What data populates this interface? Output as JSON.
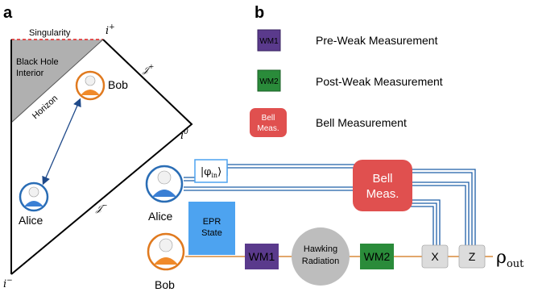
{
  "panel_a": {
    "label": "a",
    "singularity": "Singularity",
    "interior_line1": "Black Hole",
    "interior_line2": "Interior",
    "horizon": "Horizon",
    "bob": "Bob",
    "alice": "Alice",
    "i_plus_base": "i",
    "i_plus_sup": "+",
    "i_zero_base": "i",
    "i_zero_sup": "0",
    "i_minus_base": "i",
    "i_minus_sup": "−",
    "scri_plus_base": "𝒥",
    "scri_plus_sup": "+",
    "scri_minus_base": "𝒥",
    "scri_minus_sup": "−"
  },
  "panel_b": {
    "label": "b",
    "legend": [
      {
        "box": "WM1",
        "desc": "Pre-Weak Measurement"
      },
      {
        "box": "WM2",
        "desc": "Post-Weak Measurement"
      },
      {
        "box_line1": "Bell",
        "box_line2": "Meas.",
        "desc": "Bell Measurement"
      }
    ],
    "circuit": {
      "phi_in": "|φ",
      "phi_in_sub": "in",
      "phi_in_close": "⟩",
      "bell_line1": "Bell",
      "bell_line2": "Meas.",
      "epr_line1": "EPR",
      "epr_line2": "State",
      "wm1": "WM1",
      "hawking_line1": "Hawking",
      "hawking_line2": "Radiation",
      "wm2": "WM2",
      "x_gate": "X",
      "z_gate": "Z",
      "rho": "ρ",
      "rho_sub": "out",
      "alice": "Alice",
      "bob": "Bob"
    }
  },
  "colors": {
    "wm1": "#5a3a8c",
    "wm2": "#2a8b3a",
    "bell": "#e0504f",
    "epr": "#4da3f0",
    "hawking": "#bdbdbd",
    "gate": "#dcdcdc",
    "alice_ring": "#2a6db5",
    "bob_ring": "#e07a1f",
    "wire_blue": "#1f5fa8",
    "wire_orange": "#d98a3a",
    "singularity_dash": "#e05050",
    "interior_fill": "#b0b0b0"
  }
}
